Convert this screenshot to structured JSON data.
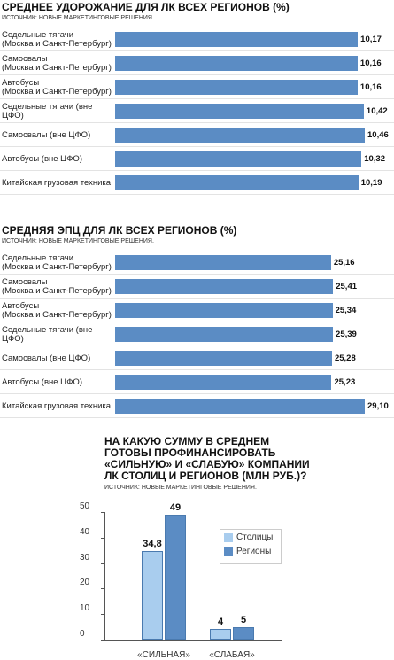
{
  "chart_data": [
    {
      "type": "hbar",
      "title": "СРЕДНЕЕ УДОРОЖАНИЕ ДЛЯ ЛК ВСЕХ РЕГИОНОВ (%)",
      "source": "ИСТОЧНИК: НОВЫЕ МАРКЕТИНГОВЫЕ РЕШЕНИЯ.",
      "categories": [
        "Седельные тягачи\n(Москва и Санкт-Петербург)",
        "Самосвалы\n(Москва и Санкт-Петербург)",
        "Автобусы\n(Москва и Санкт-Петербург)",
        "Седельные тягачи (вне ЦФО)",
        "Самосвалы (вне ЦФО)",
        "Автобусы (вне ЦФО)",
        "Китайская грузовая техника"
      ],
      "values": [
        10.17,
        10.16,
        10.16,
        10.42,
        10.46,
        10.32,
        10.19
      ],
      "value_labels": [
        "10,17",
        "10,16",
        "10,16",
        "10,42",
        "10,46",
        "10,32",
        "10,19"
      ],
      "color": "#5b8cc4"
    },
    {
      "type": "hbar",
      "title": "СРЕДНЯЯ ЭПЦ ДЛЯ ЛК ВСЕХ РЕГИОНОВ (%)",
      "source": "ИСТОЧНИК: НОВЫЕ МАРКЕТИНГОВЫЕ РЕШЕНИЯ.",
      "categories": [
        "Седельные тягачи\n(Москва и Санкт-Петербург)",
        "Самосвалы\n(Москва и Санкт-Петербург)",
        "Автобусы\n(Москва и Санкт-Петербург)",
        "Седельные тягачи (вне ЦФО)",
        "Самосвалы (вне ЦФО)",
        "Автобусы (вне ЦФО)",
        "Китайская грузовая техника"
      ],
      "values": [
        25.16,
        25.41,
        25.34,
        25.39,
        25.28,
        25.23,
        29.1
      ],
      "value_labels": [
        "25,16",
        "25,41",
        "25,34",
        "25,39",
        "25,28",
        "25,23",
        "29,10"
      ],
      "color": "#5b8cc4"
    },
    {
      "type": "vbar",
      "title": "НА КАКУЮ СУММУ В СРЕДНЕМ\nГОТОВЫ ПРОФИНАНСИРОВАТЬ\n«СИЛЬНУЮ» И «СЛАБУЮ» КОМПАНИИ\nЛК СТОЛИЦ И РЕГИОНОВ (МЛН РУБ.)?",
      "source": "ИСТОЧНИК: НОВЫЕ МАРКЕТИНГОВЫЕ РЕШЕНИЯ.",
      "categories": [
        "«СИЛЬНАЯ»",
        "«СЛАБАЯ»"
      ],
      "series": [
        {
          "name": "Столицы",
          "color": "#a9cdee",
          "values": [
            34.8,
            4
          ],
          "value_labels": [
            "34,8",
            "4"
          ]
        },
        {
          "name": "Регионы",
          "color": "#5b8cc4",
          "values": [
            49,
            5
          ]
        }
      ],
      "ylim": [
        0,
        50
      ],
      "yticks": [
        0,
        10,
        20,
        30,
        40,
        50
      ]
    }
  ]
}
